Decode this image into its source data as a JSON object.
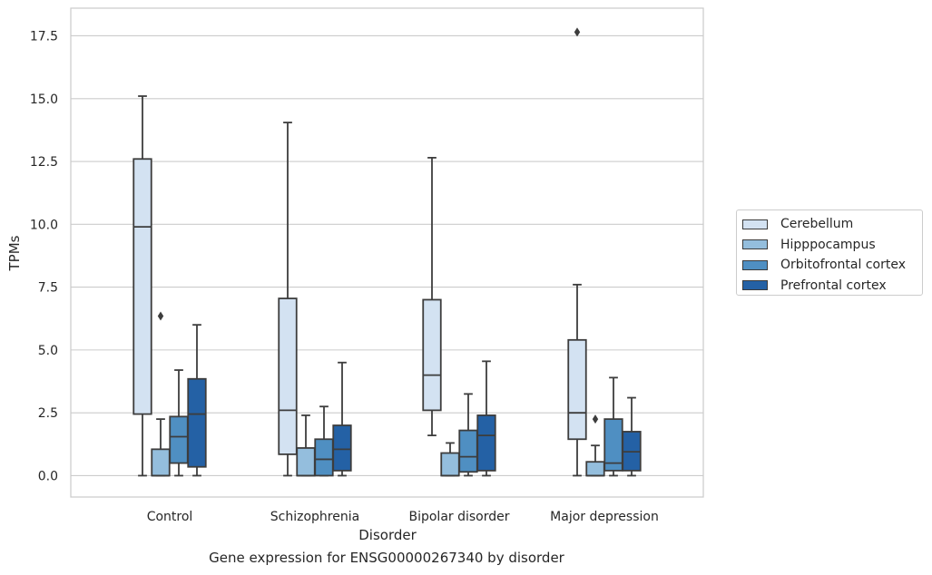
{
  "caption": "Gene expression for ENSG00000267340 by disorder",
  "chart_data": {
    "type": "box",
    "xlabel": "Disorder",
    "ylabel": "TPMs",
    "ylim": [
      -0.85,
      18.6
    ],
    "yticks": [
      0.0,
      2.5,
      5.0,
      7.5,
      10.0,
      12.5,
      15.0,
      17.5
    ],
    "ytick_labels": [
      "0.0",
      "2.5",
      "5.0",
      "7.5",
      "10.0",
      "12.5",
      "15.0",
      "17.5"
    ],
    "grid": "horizontal",
    "legend_position": "right",
    "categories": [
      "Control",
      "Schizophrenia",
      "Bipolar disorder",
      "Major depression"
    ],
    "series": [
      {
        "name": "Cerebellum",
        "color": "#d3e2f2",
        "boxes": [
          {
            "whislo": 0.0,
            "q1": 2.45,
            "med": 9.9,
            "q3": 12.6,
            "whishi": 15.1,
            "fliers": []
          },
          {
            "whislo": 0.0,
            "q1": 0.85,
            "med": 2.6,
            "q3": 7.05,
            "whishi": 14.05,
            "fliers": []
          },
          {
            "whislo": 1.6,
            "q1": 2.6,
            "med": 4.0,
            "q3": 7.0,
            "whishi": 12.65,
            "fliers": []
          },
          {
            "whislo": 0.0,
            "q1": 1.45,
            "med": 2.5,
            "q3": 5.4,
            "whishi": 7.6,
            "fliers": [
              17.65
            ]
          }
        ]
      },
      {
        "name": "Hipppocampus",
        "color": "#94bedd",
        "boxes": [
          {
            "whislo": 0.0,
            "q1": 0.0,
            "med": 0.0,
            "q3": 1.05,
            "whishi": 2.25,
            "fliers": [
              6.35
            ]
          },
          {
            "whislo": 0.0,
            "q1": 0.0,
            "med": 0.0,
            "q3": 1.1,
            "whishi": 2.4,
            "fliers": []
          },
          {
            "whislo": 0.0,
            "q1": 0.0,
            "med": 0.0,
            "q3": 0.9,
            "whishi": 1.3,
            "fliers": []
          },
          {
            "whislo": 0.0,
            "q1": 0.0,
            "med": 0.0,
            "q3": 0.55,
            "whishi": 1.2,
            "fliers": [
              2.25
            ]
          }
        ]
      },
      {
        "name": "Orbitofrontal cortex",
        "color": "#4f8fc2",
        "boxes": [
          {
            "whislo": 0.0,
            "q1": 0.5,
            "med": 1.55,
            "q3": 2.35,
            "whishi": 4.2,
            "fliers": []
          },
          {
            "whislo": 0.0,
            "q1": 0.0,
            "med": 0.65,
            "q3": 1.45,
            "whishi": 2.75,
            "fliers": []
          },
          {
            "whislo": 0.0,
            "q1": 0.15,
            "med": 0.75,
            "q3": 1.8,
            "whishi": 3.25,
            "fliers": []
          },
          {
            "whislo": 0.0,
            "q1": 0.2,
            "med": 0.5,
            "q3": 2.25,
            "whishi": 3.9,
            "fliers": []
          }
        ]
      },
      {
        "name": "Prefrontal cortex",
        "color": "#2461a5",
        "boxes": [
          {
            "whislo": 0.0,
            "q1": 0.35,
            "med": 2.45,
            "q3": 3.85,
            "whishi": 6.0,
            "fliers": []
          },
          {
            "whislo": 0.0,
            "q1": 0.2,
            "med": 1.05,
            "q3": 2.0,
            "whishi": 4.5,
            "fliers": []
          },
          {
            "whislo": 0.0,
            "q1": 0.2,
            "med": 1.6,
            "q3": 2.4,
            "whishi": 4.55,
            "fliers": []
          },
          {
            "whislo": 0.0,
            "q1": 0.2,
            "med": 0.95,
            "q3": 1.75,
            "whishi": 3.1,
            "fliers": []
          }
        ]
      }
    ]
  }
}
